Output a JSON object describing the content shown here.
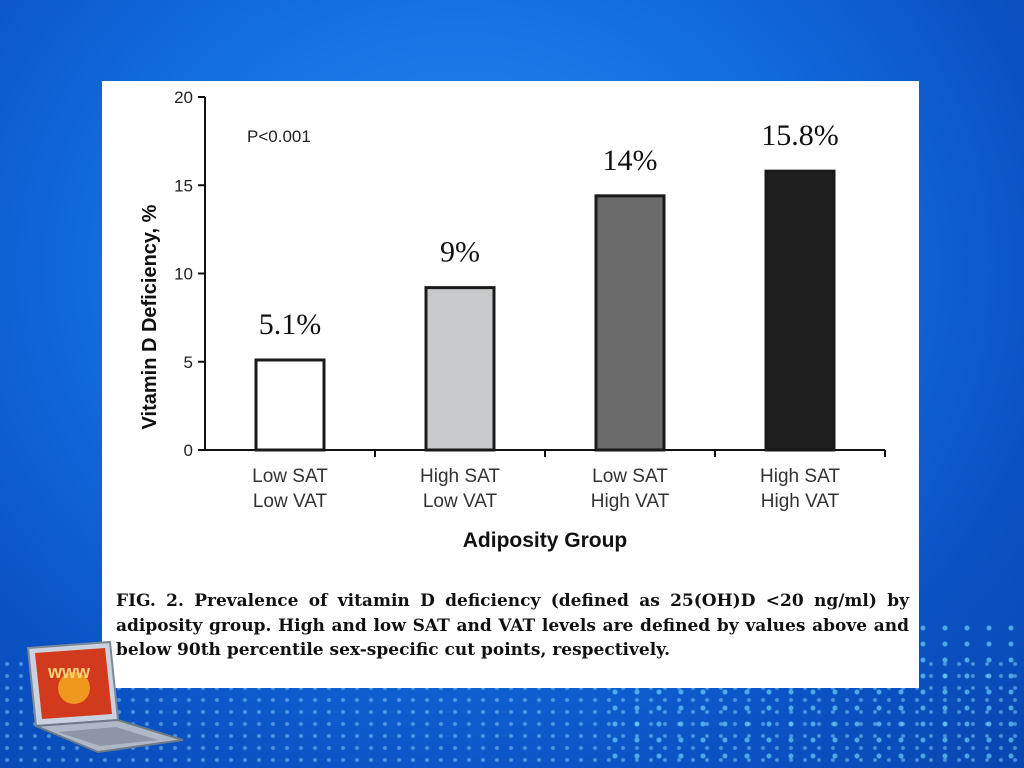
{
  "chart_data": {
    "type": "bar",
    "categories": [
      "Low SAT\nLow VAT",
      "High SAT\nLow VAT",
      "Low SAT\nHigh VAT",
      "High SAT\nHigh VAT"
    ],
    "category_lines": [
      [
        "Low SAT",
        "Low VAT"
      ],
      [
        "High SAT",
        "Low VAT"
      ],
      [
        "Low SAT",
        "High VAT"
      ],
      [
        "High SAT",
        "High VAT"
      ]
    ],
    "values": [
      5.1,
      9.2,
      14.4,
      15.8
    ],
    "data_labels": [
      "5.1%",
      "9%",
      "14%",
      "15.8%"
    ],
    "bar_colors": [
      "#ffffff",
      "#c8c9cb",
      "#6b6b6b",
      "#1f1f1f"
    ],
    "xlabel": "Adiposity Group",
    "ylabel": "Vitamin D Deficiency, %",
    "ylim": [
      0,
      20
    ],
    "yticks": [
      0,
      5,
      10,
      15,
      20
    ],
    "annotation": "P<0.001",
    "grid": false
  },
  "caption": "FIG. 2. Prevalence of vitamin D deficiency (defined as 25(OH)D <20 ng/ml) by adiposity group. High and low SAT and VAT levels are defined by values above and below 90th percentile sex-specific cut points, respectively.",
  "colors": {
    "background": "#1470e0",
    "panel": "#ffffff",
    "axis": "#111111"
  },
  "decoration": {
    "laptop_screen_text": "www",
    "icon": "laptop-icon"
  }
}
